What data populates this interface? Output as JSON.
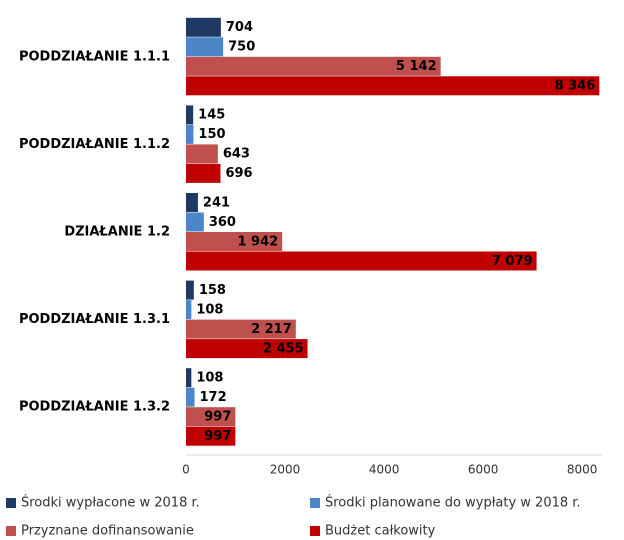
{
  "chart_data": {
    "type": "hbar",
    "categories": [
      "PODDZIAŁANIE 1.1.1",
      "PODDZIAŁANIE 1.1.2",
      "DZIAŁANIE 1.2",
      "PODDZIAŁANIE 1.3.1",
      "PODDZIAŁANIE 1.3.2"
    ],
    "series": [
      {
        "name": "Środki wypłacone w 2018 r.",
        "color": "#1f3864",
        "values": [
          704,
          145,
          241,
          158,
          108
        ]
      },
      {
        "name": "Środki planowane do wypłaty w 2018 r.",
        "color": "#4a86c8",
        "values": [
          750,
          150,
          360,
          108,
          172
        ]
      },
      {
        "name": "Przyznane dofinansowanie",
        "color": "#c0504d",
        "values": [
          5142,
          643,
          1942,
          2217,
          997
        ],
        "value_labels": [
          "5 142",
          "643",
          "1 942",
          "2 217",
          "997"
        ]
      },
      {
        "name": "Budżet całkowity",
        "color": "#c00000",
        "values": [
          8346,
          696,
          7079,
          2455,
          997
        ],
        "value_labels": [
          "8 346",
          "696",
          "7 079",
          "2 455",
          "997"
        ]
      }
    ],
    "xlim": [
      0,
      8400
    ],
    "xticks": [
      0,
      2000,
      4000,
      6000,
      8000
    ],
    "grid": false
  }
}
